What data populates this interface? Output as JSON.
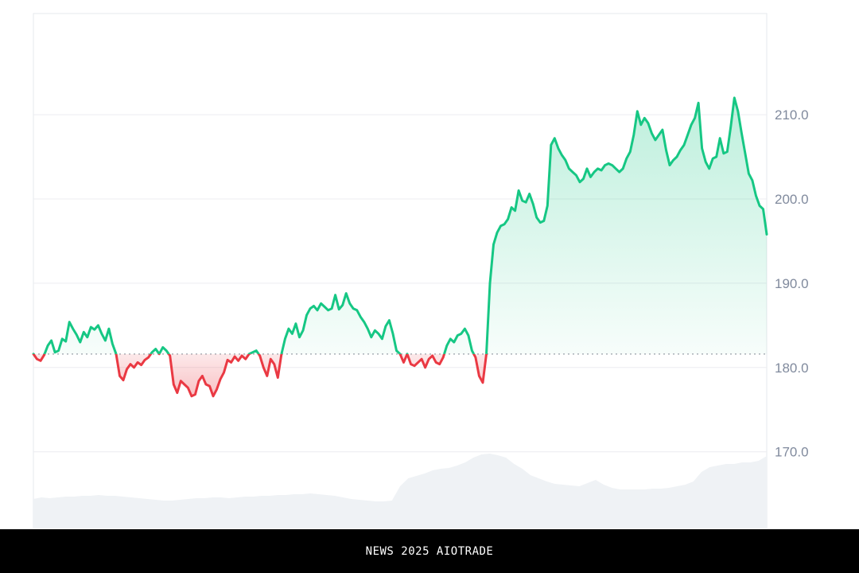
{
  "chart_data": {
    "type": "area",
    "title": "",
    "xlabel": "",
    "ylabel": "",
    "ylim": [
      161,
      222
    ],
    "y_ticks": [
      210,
      200,
      190,
      180,
      170
    ],
    "y_tick_labels": [
      "210.0",
      "200.0",
      "190.0",
      "180.0",
      "170.0"
    ],
    "baseline": 181.6,
    "grid": true,
    "y_axis_position": "right",
    "colors": {
      "up": "#16c784",
      "down": "#ea3943",
      "grid": "#ececf0",
      "volume": "#eff2f5",
      "tick": "#808a9d"
    },
    "series": [
      {
        "values": [
          181.6,
          181.0,
          180.8,
          181.5,
          182.6,
          183.2,
          181.8,
          182.0,
          183.4,
          183.1,
          185.4,
          184.6,
          183.9,
          183.0,
          184.2,
          183.6,
          184.8,
          184.5,
          185.0,
          184.0,
          183.2,
          184.6,
          182.8,
          181.6,
          179.0,
          178.5,
          179.8,
          180.4,
          180.0,
          180.6,
          180.3,
          180.9,
          181.2,
          181.8,
          182.2,
          181.6,
          182.4,
          182.0,
          181.4,
          178.0,
          177.0,
          178.4,
          178.0,
          177.6,
          176.6,
          176.8,
          178.4,
          179.0,
          178.0,
          177.8,
          176.6,
          177.4,
          178.6,
          179.4,
          180.9,
          180.6,
          181.3,
          180.8,
          181.4,
          181.0,
          181.6,
          181.8,
          182.0,
          181.4,
          180.0,
          179.0,
          181.0,
          180.4,
          178.8,
          181.6,
          183.4,
          184.6,
          184.0,
          185.2,
          183.6,
          184.4,
          186.2,
          187.0,
          187.3,
          186.8,
          187.6,
          187.2,
          186.8,
          187.0,
          188.6,
          186.9,
          187.4,
          188.8,
          187.6,
          187.0,
          186.8,
          186.0,
          185.4,
          184.6,
          183.6,
          184.4,
          184.0,
          183.4,
          184.9,
          185.6,
          184.0,
          182.0,
          181.6,
          180.6,
          181.6,
          180.4,
          180.2,
          180.6,
          181.0,
          180.0,
          181.0,
          181.4,
          180.6,
          180.4,
          181.2,
          182.6,
          183.4,
          183.0,
          183.8,
          184.0,
          184.6,
          183.8,
          182.0,
          181.2,
          179.0,
          178.2,
          181.6,
          190.0,
          194.6,
          196.0,
          196.8,
          197.0,
          197.6,
          199.0,
          198.6,
          201.0,
          199.8,
          199.6,
          200.6,
          199.4,
          197.8,
          197.2,
          197.4,
          199.2,
          206.4,
          207.2,
          206.0,
          205.2,
          204.6,
          203.6,
          203.2,
          202.8,
          202.0,
          202.4,
          203.6,
          202.6,
          203.2,
          203.6,
          203.4,
          204.0,
          204.2,
          204.0,
          203.6,
          203.2,
          203.6,
          204.8,
          205.6,
          207.6,
          210.4,
          208.8,
          209.6,
          209.0,
          207.8,
          207.0,
          207.6,
          208.2,
          205.8,
          204.0,
          204.6,
          205.0,
          205.8,
          206.4,
          207.6,
          208.8,
          209.6,
          211.4,
          206.0,
          204.4,
          203.6,
          204.8,
          205.0,
          207.2,
          205.4,
          205.6,
          208.6,
          212.0,
          210.4,
          207.8,
          205.4,
          203.0,
          202.2,
          200.4,
          199.2,
          198.8,
          195.8
        ]
      }
    ],
    "volume": [
      0.36,
      0.38,
      0.37,
      0.38,
      0.39,
      0.39,
      0.4,
      0.4,
      0.41,
      0.4,
      0.4,
      0.39,
      0.38,
      0.37,
      0.36,
      0.35,
      0.34,
      0.34,
      0.35,
      0.36,
      0.37,
      0.37,
      0.38,
      0.38,
      0.37,
      0.38,
      0.39,
      0.39,
      0.4,
      0.4,
      0.41,
      0.41,
      0.42,
      0.42,
      0.43,
      0.42,
      0.41,
      0.4,
      0.38,
      0.36,
      0.35,
      0.34,
      0.33,
      0.33,
      0.34,
      0.52,
      0.62,
      0.65,
      0.68,
      0.72,
      0.74,
      0.75,
      0.78,
      0.82,
      0.88,
      0.92,
      0.93,
      0.91,
      0.88,
      0.8,
      0.74,
      0.66,
      0.62,
      0.58,
      0.55,
      0.54,
      0.53,
      0.52,
      0.56,
      0.6,
      0.54,
      0.5,
      0.48,
      0.48,
      0.48,
      0.48,
      0.49,
      0.49,
      0.5,
      0.52,
      0.54,
      0.58,
      0.7,
      0.76,
      0.78,
      0.8,
      0.8,
      0.82,
      0.82,
      0.84,
      0.9
    ]
  },
  "footer": {
    "text": "NEWS 2025 AIOTRADE"
  }
}
